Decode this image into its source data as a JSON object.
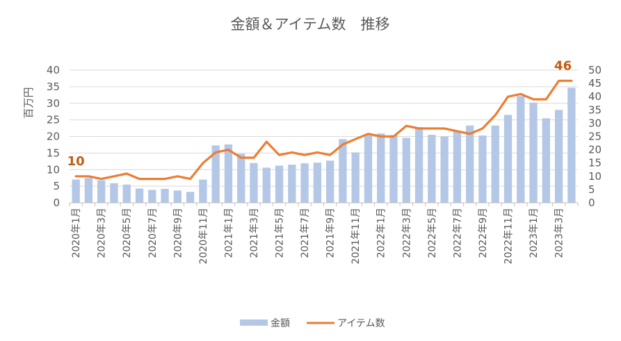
{
  "chart_data": {
    "type": "bar+line",
    "title": "金額＆アイテム数　推移",
    "ylabel_left": "百万円",
    "ylim_left": [
      0,
      40
    ],
    "yticks_left": [
      0,
      5,
      10,
      15,
      20,
      25,
      30,
      35,
      40
    ],
    "ylim_right": [
      0,
      50
    ],
    "yticks_right": [
      0,
      5,
      10,
      15,
      20,
      25,
      30,
      35,
      40,
      45,
      50
    ],
    "categories": [
      "2020年1月",
      "2020年2月",
      "2020年3月",
      "2020年4月",
      "2020年5月",
      "2020年6月",
      "2020年7月",
      "2020年8月",
      "2020年9月",
      "2020年10月",
      "2020年11月",
      "2020年12月",
      "2021年1月",
      "2021年2月",
      "2021年3月",
      "2021年4月",
      "2021年5月",
      "2021年6月",
      "2021年7月",
      "2021年8月",
      "2021年9月",
      "2021年10月",
      "2021年11月",
      "2021年12月",
      "2022年1月",
      "2022年2月",
      "2022年3月",
      "2022年4月",
      "2022年5月",
      "2022年6月",
      "2022年7月",
      "2022年8月",
      "2022年9月",
      "2022年10月",
      "2022年11月",
      "2022年12月",
      "2023年1月",
      "2023年2月",
      "2023年3月",
      "2023年4月"
    ],
    "xtick_labels": [
      "2020年1月",
      "2020年3月",
      "2020年5月",
      "2020年7月",
      "2020年9月",
      "2020年11月",
      "2021年1月",
      "2021年3月",
      "2021年5月",
      "2021年7月",
      "2021年9月",
      "2021年11月",
      "2022年1月",
      "2022年3月",
      "2022年5月",
      "2022年7月",
      "2022年9月",
      "2022年11月",
      "2023年1月",
      "2023年3月"
    ],
    "series": [
      {
        "name": "金額",
        "kind": "bar",
        "axis": "left",
        "color": "#b4c7e7",
        "values": [
          7.0,
          7.5,
          6.8,
          5.9,
          5.5,
          4.3,
          3.9,
          4.2,
          3.7,
          3.3,
          7.0,
          17.3,
          17.6,
          14.8,
          12.0,
          10.6,
          11.2,
          11.5,
          11.9,
          12.1,
          12.7,
          19.2,
          15.2,
          20.4,
          20.9,
          20.4,
          19.6,
          22.8,
          20.5,
          20.0,
          21.6,
          23.3,
          20.3,
          23.3,
          26.5,
          32.2,
          30.2,
          25.5,
          28.0,
          34.7
        ]
      },
      {
        "name": "アイテム数",
        "kind": "line",
        "axis": "right",
        "color": "#ed7d31",
        "values": [
          10,
          10,
          9,
          10,
          11,
          9,
          9,
          9,
          10,
          9,
          15,
          19,
          20,
          17,
          17,
          23,
          18,
          19,
          18,
          19,
          18,
          22,
          24,
          26,
          25,
          25,
          29,
          28,
          28,
          28,
          27,
          26,
          28,
          33,
          40,
          41,
          39,
          39,
          46,
          46
        ]
      }
    ],
    "data_labels": [
      {
        "series": "アイテム数",
        "text": "10"
      },
      {
        "series": "アイテム数",
        "text": "46"
      }
    ],
    "legend": {
      "position": "bottom",
      "entries": [
        "金額",
        "アイテム数"
      ]
    },
    "grid": true
  }
}
